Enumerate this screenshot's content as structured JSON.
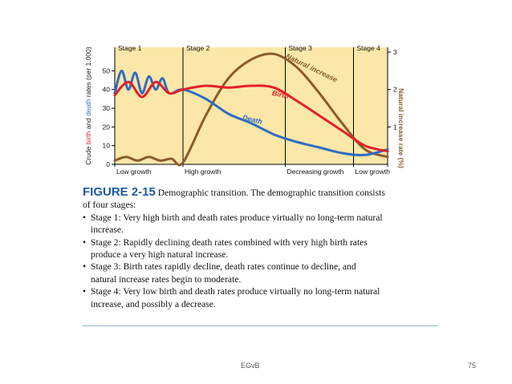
{
  "chart_data": {
    "type": "line",
    "ylabel_left_parts": [
      "Crude ",
      "birth",
      " and ",
      "death",
      " rates (per 1,000)"
    ],
    "ylabel_right": "Natural increase rate (%)",
    "left_ticks": [
      "0",
      "10",
      "20",
      "30",
      "40",
      "50"
    ],
    "right_ticks": [
      "1",
      "2",
      "3"
    ],
    "ylim_left": [
      0,
      60
    ],
    "ylim_right": [
      0,
      3
    ],
    "stages": [
      "Stage 1",
      "Stage 2",
      "Stage 3",
      "Stage 4"
    ],
    "growth_labels": [
      "Low growth",
      "High growth",
      "Decreasing growth",
      "Low growth"
    ],
    "series": [
      {
        "name": "Birth",
        "color": "#e3202a",
        "axis": "left",
        "values": [
          [
            0,
            37
          ],
          [
            0.6,
            44
          ],
          [
            1.2,
            36
          ],
          [
            1.8,
            44
          ],
          [
            2.4,
            38
          ],
          [
            3,
            40
          ],
          [
            4,
            42
          ],
          [
            5,
            41
          ],
          [
            6,
            42
          ],
          [
            7,
            41
          ],
          [
            8,
            34
          ],
          [
            9,
            26
          ],
          [
            10,
            18
          ],
          [
            11,
            10
          ],
          [
            12,
            7
          ]
        ]
      },
      {
        "name": "Death",
        "color": "#2f6cc5",
        "axis": "left",
        "values": [
          [
            0,
            38
          ],
          [
            0.3,
            50
          ],
          [
            0.6,
            40
          ],
          [
            0.9,
            49
          ],
          [
            1.2,
            38
          ],
          [
            1.5,
            47
          ],
          [
            1.8,
            40
          ],
          [
            2.1,
            46
          ],
          [
            2.4,
            38
          ],
          [
            3,
            40
          ],
          [
            4,
            35
          ],
          [
            5,
            27
          ],
          [
            6,
            22
          ],
          [
            7,
            16
          ],
          [
            8,
            12
          ],
          [
            9,
            9
          ],
          [
            10,
            6
          ],
          [
            11,
            5
          ],
          [
            12,
            8
          ]
        ]
      },
      {
        "name": "Natural increase",
        "color": "#8b5a2b",
        "axis": "right",
        "values": [
          [
            0,
            0.1
          ],
          [
            0.5,
            0.2
          ],
          [
            1,
            0.1
          ],
          [
            1.5,
            0.2
          ],
          [
            2,
            0.1
          ],
          [
            2.5,
            0.15
          ],
          [
            3,
            0.05
          ],
          [
            4,
            1.3
          ],
          [
            5,
            2.3
          ],
          [
            6,
            2.8
          ],
          [
            7,
            2.95
          ],
          [
            8,
            2.6
          ],
          [
            9,
            1.9
          ],
          [
            10,
            1.1
          ],
          [
            11,
            0.4
          ],
          [
            12,
            0.2
          ]
        ]
      }
    ],
    "grid": false
  },
  "caption": {
    "figure_number": "FIGURE 2-15",
    "intro_line1": "Demographic transition. The demographic transition consists",
    "intro_line2": "of four stages:",
    "bullets": [
      [
        "Stage 1: Very high birth and death rates produce virtually no long-term natural",
        "increase."
      ],
      [
        "Stage 2: Rapidly declining death rates combined with very high birth rates",
        "produce a very high natural increase."
      ],
      [
        "Stage 3: Birth rates rapidly decline, death rates continue to decline, and",
        "natural increase rates begin to moderate."
      ],
      [
        "Stage 4: Very low birth and death rates produce virtually no long-term natural",
        "increase, and possibly a decrease."
      ]
    ]
  },
  "footer": {
    "left": "EGvB",
    "right": "75"
  },
  "colors": {
    "plot_bg": "#fbe7a8",
    "birth": "#e3202a",
    "death": "#2f6cc5",
    "natural": "#8b5a2b",
    "figure_number": "#1c5aa6"
  }
}
